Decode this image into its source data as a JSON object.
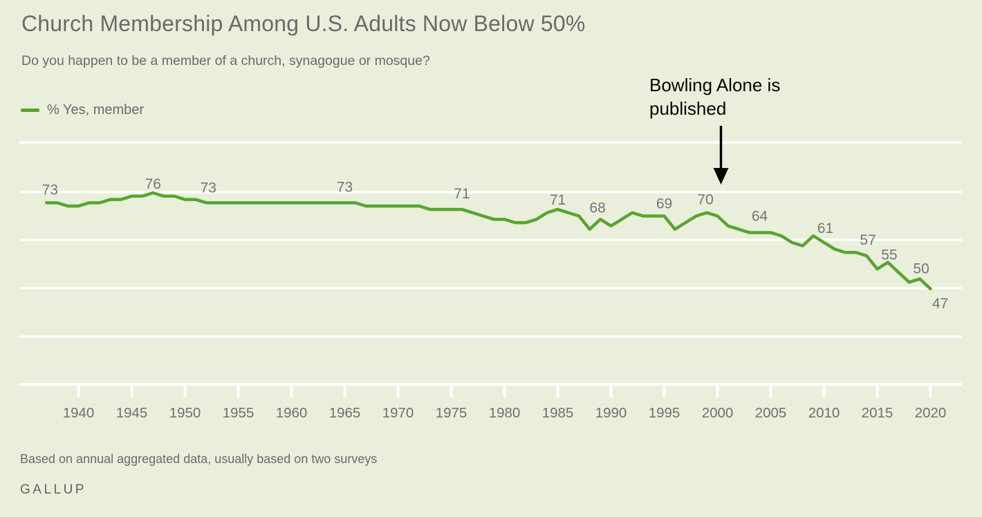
{
  "page": {
    "title": "Church Membership Among U.S. Adults Now Below 50%",
    "subtitle": "Do you happen to be a member of a church, synagogue or mosque?",
    "footnote": "Based on annual aggregated data, usually based on two surveys",
    "brand": "GALLUP"
  },
  "legend": {
    "series_label": "% Yes, member"
  },
  "annotation": {
    "text": "Bowling Alone is published",
    "arrow_points_to_year": 2000
  },
  "colors": {
    "background": "#e9efdb",
    "line": "#5ba331",
    "gridline": "#ffffff",
    "data_label": "#757575",
    "axis_label": "#6f6f6f",
    "text": "#6a6a6a",
    "annotation": "#050505"
  },
  "chart_data": {
    "type": "line",
    "title": "Church Membership Among U.S. Adults Now Below 50%",
    "subtitle": "Do you happen to be a member of a church, synagogue or mosque?",
    "series_name": "% Yes, member",
    "x": [
      1937,
      1938,
      1939,
      1940,
      1941,
      1942,
      1943,
      1944,
      1945,
      1946,
      1947,
      1948,
      1949,
      1950,
      1951,
      1952,
      1953,
      1954,
      1955,
      1956,
      1957,
      1958,
      1959,
      1960,
      1961,
      1962,
      1963,
      1964,
      1965,
      1966,
      1967,
      1968,
      1969,
      1970,
      1971,
      1972,
      1973,
      1974,
      1975,
      1976,
      1977,
      1978,
      1979,
      1980,
      1981,
      1982,
      1983,
      1984,
      1985,
      1986,
      1987,
      1988,
      1989,
      1990,
      1991,
      1992,
      1993,
      1994,
      1995,
      1996,
      1997,
      1998,
      1999,
      2000,
      2001,
      2002,
      2003,
      2004,
      2005,
      2006,
      2007,
      2008,
      2009,
      2010,
      2011,
      2012,
      2013,
      2014,
      2015,
      2016,
      2017,
      2018,
      2019,
      2020
    ],
    "values": [
      73,
      73,
      72,
      72,
      73,
      73,
      74,
      74,
      75,
      75,
      76,
      75,
      75,
      74,
      74,
      73,
      73,
      73,
      73,
      73,
      73,
      73,
      73,
      73,
      73,
      73,
      73,
      73,
      73,
      73,
      72,
      72,
      72,
      72,
      72,
      72,
      71,
      71,
      71,
      71,
      70,
      69,
      68,
      68,
      67,
      67,
      68,
      70,
      71,
      70,
      69,
      65,
      68,
      66,
      68,
      70,
      69,
      69,
      69,
      65,
      67,
      69,
      70,
      69,
      66,
      65,
      64,
      64,
      64,
      63,
      61,
      60,
      63,
      61,
      59,
      58,
      58,
      57,
      53,
      55,
      52,
      49,
      50,
      47
    ],
    "labeled_points": [
      {
        "year": 1937,
        "value": 73
      },
      {
        "year": 1947,
        "value": 76
      },
      {
        "year": 1952,
        "value": 73
      },
      {
        "year": 1965,
        "value": 73
      },
      {
        "year": 1976,
        "value": 71
      },
      {
        "year": 1985,
        "value": 71
      },
      {
        "year": 1989,
        "value": 68
      },
      {
        "year": 1995,
        "value": 69
      },
      {
        "year": 1999,
        "value": 70
      },
      {
        "year": 2005,
        "value": 64
      },
      {
        "year": 2010,
        "value": 61
      },
      {
        "year": 2014,
        "value": 57
      },
      {
        "year": 2016,
        "value": 55
      },
      {
        "year": 2019,
        "value": 50
      },
      {
        "year": 2020,
        "value": 47
      }
    ],
    "x_ticks": [
      1940,
      1945,
      1950,
      1955,
      1960,
      1965,
      1970,
      1975,
      1980,
      1985,
      1990,
      1995,
      2000,
      2005,
      2010,
      2015,
      2020
    ],
    "x_range": [
      1937,
      2020
    ],
    "ylim_estimate": [
      18,
      91
    ],
    "grid": "horizontal-only, white gridlines, no y-axis tick labels",
    "legend_position": "top-left",
    "annotation": {
      "text": "Bowling Alone is published",
      "arrow_points_to_year": 2000
    }
  }
}
